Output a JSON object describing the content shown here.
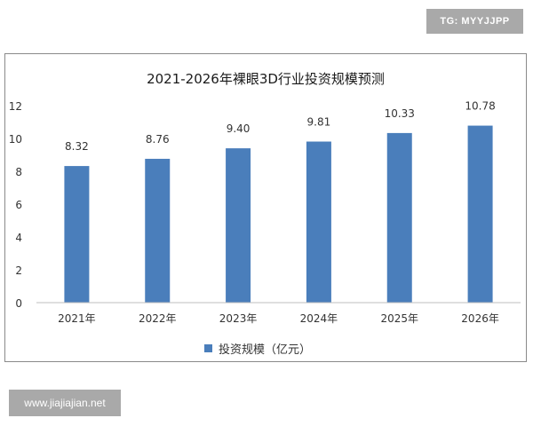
{
  "badge": {
    "text": "TG: MYYJJPP"
  },
  "watermark": {
    "text": "www.jiajiajian.net"
  },
  "colors": {
    "bar": "#4a7ebb",
    "axis": "#bfbfbf",
    "frame": "#8a8a8a"
  },
  "chart_data": {
    "type": "bar",
    "title": "2021-2026年裸眼3D行业投资规模预测",
    "categories": [
      "2021年",
      "2022年",
      "2023年",
      "2024年",
      "2025年",
      "2026年"
    ],
    "series": [
      {
        "name": "投资规模（亿元）",
        "values": [
          8.32,
          8.76,
          9.4,
          9.81,
          10.33,
          10.78
        ]
      }
    ],
    "data_labels": [
      "8.32",
      "8.76",
      "9.40",
      "9.81",
      "10.33",
      "10.78"
    ],
    "ylim": [
      0,
      12
    ],
    "yticks": [
      0,
      2,
      4,
      6,
      8,
      10,
      12
    ],
    "xlabel": "",
    "ylabel": "",
    "grid": false,
    "legend_position": "bottom"
  }
}
